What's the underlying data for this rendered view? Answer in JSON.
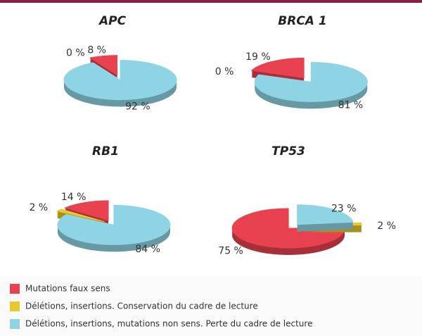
{
  "chart_data": [
    {
      "type": "pie",
      "title": "APC",
      "values": [
        8,
        0,
        92
      ],
      "value_labels": [
        "8 %",
        "0 %",
        "92 %"
      ]
    },
    {
      "type": "pie",
      "title": "BRCA 1",
      "values": [
        19,
        0,
        81
      ],
      "value_labels": [
        "19 %",
        "0 %",
        "81 %"
      ]
    },
    {
      "type": "pie",
      "title": "RB1",
      "values": [
        14,
        2,
        84
      ],
      "value_labels": [
        "14 %",
        "2 %",
        "84 %"
      ]
    },
    {
      "type": "pie",
      "title": "TP53",
      "values": [
        75,
        2,
        23
      ],
      "value_labels": [
        "75 %",
        "2 %",
        "23 %"
      ]
    }
  ],
  "legend": [
    {
      "name": "Mutations faux sens",
      "color": "#e8414f"
    },
    {
      "name": "Délétions, insertions. Conservation du cadre de lecture",
      "color": "#e6c92c"
    },
    {
      "name": "Délétions, insertions, mutations non sens. Perte du cadre de lecture",
      "color": "#8fd4e4"
    }
  ]
}
